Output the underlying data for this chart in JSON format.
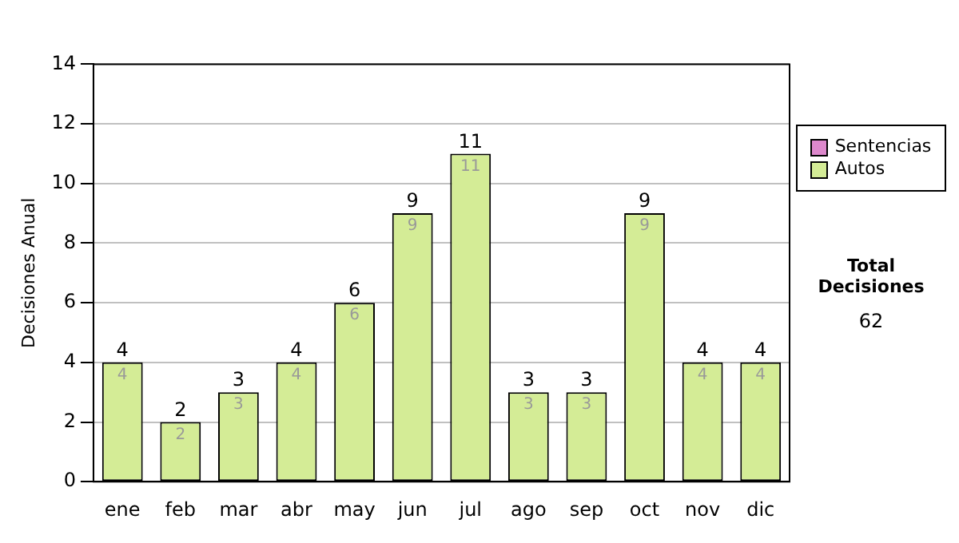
{
  "chart_data": {
    "type": "bar",
    "stacked": true,
    "ylabel": "Decisiones Anual",
    "categories": [
      "ene",
      "feb",
      "mar",
      "abr",
      "may",
      "jun",
      "jul",
      "ago",
      "sep",
      "oct",
      "nov",
      "dic"
    ],
    "series": [
      {
        "name": "Sentencias",
        "color": "#dd88cc",
        "values": [
          0,
          0,
          0,
          0,
          0,
          0,
          0,
          0,
          0,
          0,
          0,
          0
        ]
      },
      {
        "name": "Autos",
        "color": "#d4ec96",
        "values": [
          4,
          2,
          3,
          4,
          6,
          9,
          11,
          3,
          3,
          9,
          4,
          4
        ],
        "value_labels": [
          "4",
          "2",
          "3",
          "4",
          "6",
          "9",
          "11",
          "3",
          "3",
          "9",
          "4",
          "4"
        ]
      }
    ],
    "totals": [
      "4",
      "2",
      "3",
      "4",
      "6",
      "9",
      "11",
      "3",
      "3",
      "9",
      "4",
      "4"
    ],
    "ylim": [
      0,
      14
    ],
    "yticks": [
      0,
      2,
      4,
      6,
      8,
      10,
      12,
      14
    ],
    "grid": "y",
    "legend": "right",
    "annotations": [
      "Total Decisiones",
      "62"
    ]
  }
}
